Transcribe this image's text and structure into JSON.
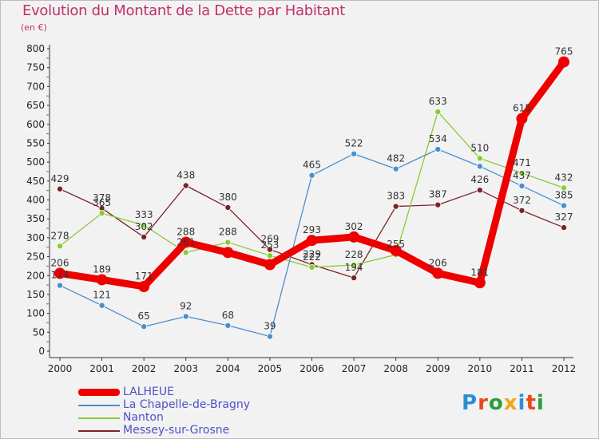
{
  "title": "Evolution du Montant de la Dette par Habitant",
  "subtitle": "(en €)",
  "logo": {
    "text": "Proxiti",
    "colors": [
      "#2a8fd6",
      "#e8481c",
      "#2a9d3a",
      "#f2a516",
      "#2a8fd6",
      "#e8481c",
      "#2a9d3a"
    ]
  },
  "chart_data": {
    "type": "line",
    "x": [
      "2000",
      "2001",
      "2002",
      "2003",
      "2004",
      "2005",
      "2006",
      "2007",
      "2008",
      "2009",
      "2010",
      "2011",
      "2012"
    ],
    "yticks": [
      "0",
      "50",
      "100",
      "150",
      "200",
      "250",
      "300",
      "350",
      "400",
      "450",
      "500",
      "550",
      "600",
      "650",
      "700",
      "750",
      "800"
    ],
    "ylim": [
      0,
      800
    ],
    "grid": false,
    "legend_position": "bottom-left",
    "series": [
      {
        "name": "LALHEUE",
        "color": "#ee0000",
        "values": [
          206,
          189,
          171,
          288,
          261,
          229,
          293,
          302,
          266,
          206,
          181,
          615,
          765
        ],
        "labels": [
          "206",
          "189",
          "171",
          "288",
          "",
          "",
          "293",
          "302",
          "",
          "206",
          "181",
          "615",
          "765"
        ]
      },
      {
        "name": "La Chapelle-de-Bragny",
        "color": "#4a8fcc",
        "values": [
          174,
          121,
          65,
          92,
          68,
          39,
          465,
          522,
          482,
          534,
          489,
          437,
          385
        ],
        "labels": [
          "174",
          "121",
          "65",
          "92",
          "68",
          "39",
          "465",
          "522",
          "482",
          "534",
          "",
          "437",
          "385"
        ]
      },
      {
        "name": "Nanton",
        "color": "#88cc33",
        "values": [
          278,
          365,
          333,
          261,
          288,
          253,
          222,
          228,
          255,
          633,
          510,
          471,
          432
        ],
        "labels": [
          "278",
          "365",
          "333",
          "261",
          "288",
          "253",
          "222",
          "228",
          "255",
          "633",
          "510",
          "471",
          "432"
        ]
      },
      {
        "name": "Messey-sur-Grosne",
        "color": "#7a2226",
        "values": [
          429,
          378,
          302,
          438,
          380,
          269,
          229,
          194,
          383,
          387,
          426,
          372,
          327
        ],
        "labels": [
          "429",
          "378",
          "302",
          "438",
          "380",
          "269",
          "229",
          "194",
          "383",
          "387",
          "426",
          "372",
          "327"
        ]
      }
    ]
  }
}
